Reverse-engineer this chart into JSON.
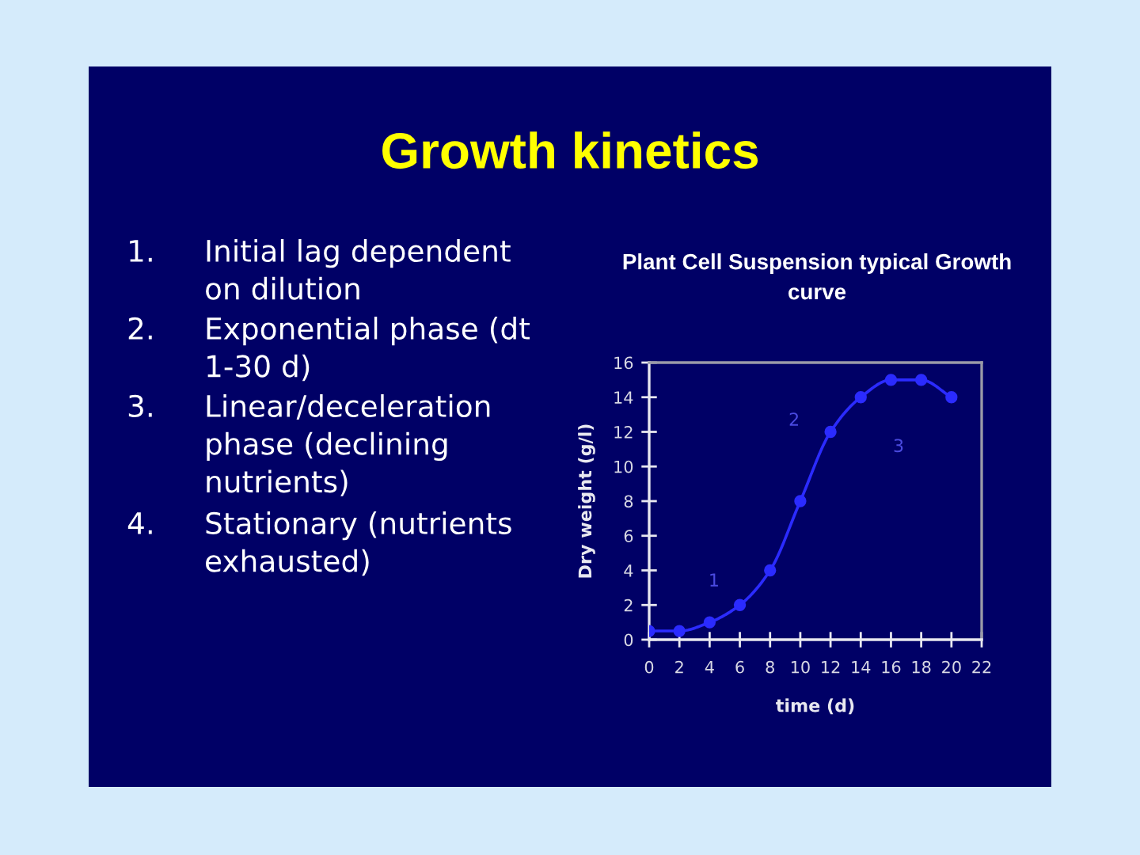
{
  "chart_data": {
    "type": "line",
    "title": "Growth kinetics",
    "subtitle": "Plant Cell Suspension typical Growth curve",
    "xlabel": "time (d)",
    "ylabel": "Dry weight (g/l)",
    "x": [
      0,
      2,
      4,
      6,
      8,
      10,
      12,
      14,
      16,
      18,
      20
    ],
    "series": [
      {
        "color": "#2b2bff",
        "values": [
          0.5,
          0.5,
          1,
          2,
          4,
          8,
          12,
          14,
          15,
          15,
          14
        ]
      }
    ],
    "xlim": [
      0,
      22
    ],
    "xticks": [
      0,
      2,
      4,
      6,
      8,
      10,
      12,
      14,
      16,
      18,
      20,
      22
    ],
    "ylim": [
      0,
      16
    ],
    "yticks": [
      0,
      2,
      4,
      6,
      8,
      10,
      12,
      14,
      16
    ],
    "marker": "circle",
    "line_style": "solid",
    "annotations": [
      "1. Initial lag dependent on dilution",
      "2. Exponential phase (dt 1-30 d)",
      "3. Linear/deceleration phase (declining nutrients)",
      "4. Stationary (nutrients exhausted)",
      "1",
      "2",
      "3"
    ]
  }
}
